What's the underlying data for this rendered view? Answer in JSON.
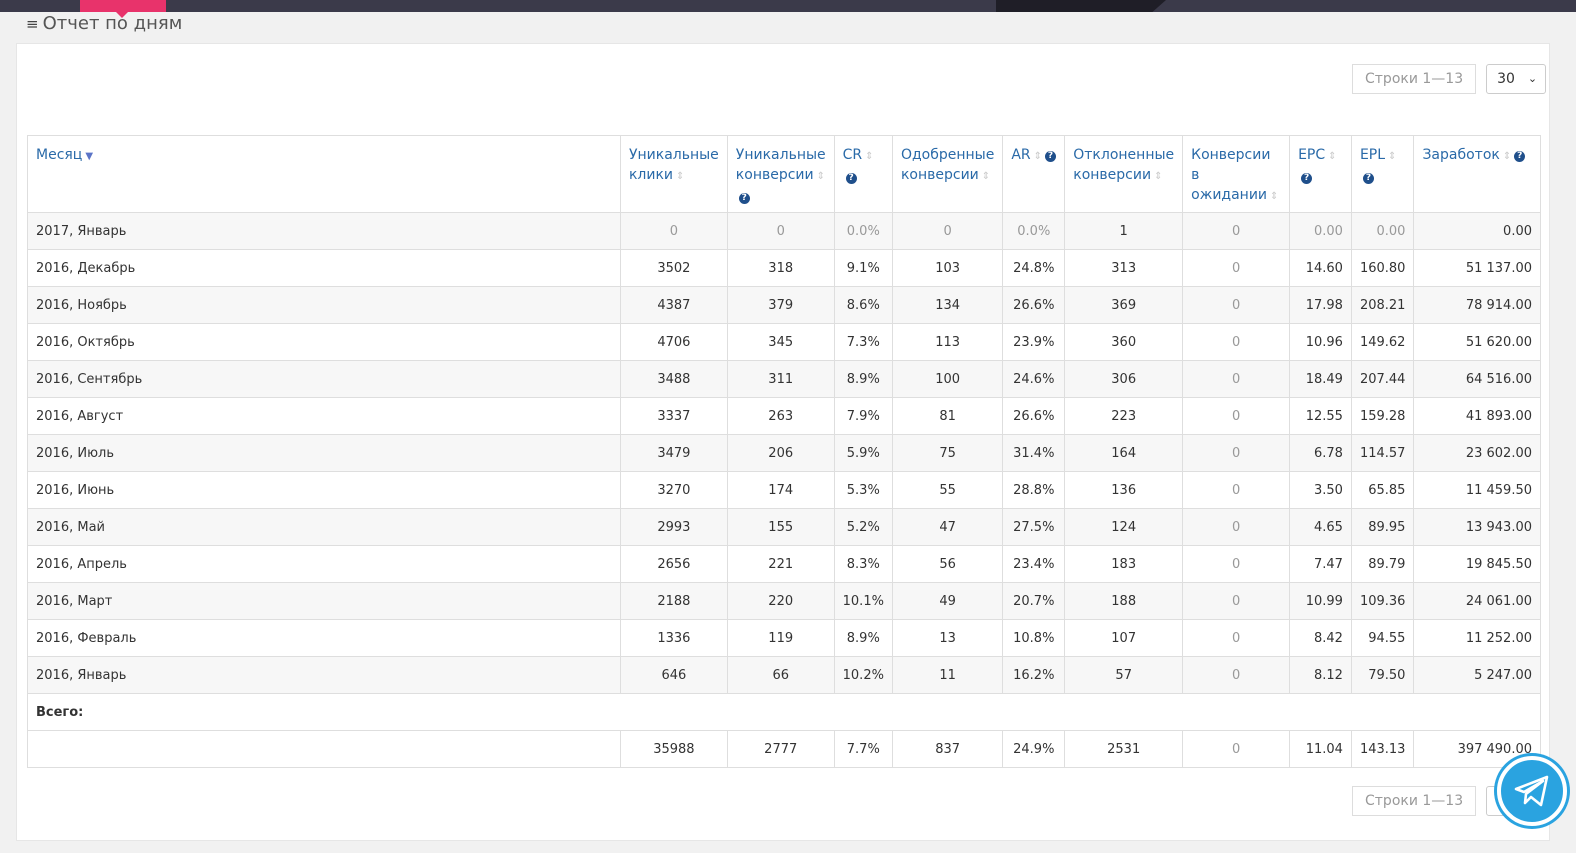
{
  "panel": {
    "title": "Отчет по дням",
    "rows_label": "Строки 1—13",
    "page_size": "30"
  },
  "columns": [
    {
      "key": "month",
      "label": "Месяц",
      "sorted": true,
      "help": false
    },
    {
      "key": "uniq_clicks",
      "label": "Уникальные клики",
      "help": false
    },
    {
      "key": "uniq_conv",
      "label": "Уникальные конверсии",
      "help": true
    },
    {
      "key": "cr",
      "label": "CR",
      "help": true
    },
    {
      "key": "approved",
      "label": "Одобренные конверсии",
      "help": false
    },
    {
      "key": "ar",
      "label": "AR",
      "help": true
    },
    {
      "key": "rejected",
      "label": "Отклоненные конверсии",
      "help": false
    },
    {
      "key": "pending",
      "label": "Конверсии в ожидании",
      "help": false
    },
    {
      "key": "epc",
      "label": "EPC",
      "help": true
    },
    {
      "key": "epl",
      "label": "EPL",
      "help": true
    },
    {
      "key": "earnings",
      "label": "Заработок",
      "help": true
    }
  ],
  "rows": [
    [
      "2017, Январь",
      "0",
      "0",
      "0.0%",
      "0",
      "0.0%",
      "1",
      "0",
      "0.00",
      "0.00",
      "0.00"
    ],
    [
      "2016, Декабрь",
      "3502",
      "318",
      "9.1%",
      "103",
      "24.8%",
      "313",
      "0",
      "14.60",
      "160.80",
      "51 137.00"
    ],
    [
      "2016, Ноябрь",
      "4387",
      "379",
      "8.6%",
      "134",
      "26.6%",
      "369",
      "0",
      "17.98",
      "208.21",
      "78 914.00"
    ],
    [
      "2016, Октябрь",
      "4706",
      "345",
      "7.3%",
      "113",
      "23.9%",
      "360",
      "0",
      "10.96",
      "149.62",
      "51 620.00"
    ],
    [
      "2016, Сентябрь",
      "3488",
      "311",
      "8.9%",
      "100",
      "24.6%",
      "306",
      "0",
      "18.49",
      "207.44",
      "64 516.00"
    ],
    [
      "2016, Август",
      "3337",
      "263",
      "7.9%",
      "81",
      "26.6%",
      "223",
      "0",
      "12.55",
      "159.28",
      "41 893.00"
    ],
    [
      "2016, Июль",
      "3479",
      "206",
      "5.9%",
      "75",
      "31.4%",
      "164",
      "0",
      "6.78",
      "114.57",
      "23 602.00"
    ],
    [
      "2016, Июнь",
      "3270",
      "174",
      "5.3%",
      "55",
      "28.8%",
      "136",
      "0",
      "3.50",
      "65.85",
      "11 459.50"
    ],
    [
      "2016, Май",
      "2993",
      "155",
      "5.2%",
      "47",
      "27.5%",
      "124",
      "0",
      "4.65",
      "89.95",
      "13 943.00"
    ],
    [
      "2016, Апрель",
      "2656",
      "221",
      "8.3%",
      "56",
      "23.4%",
      "183",
      "0",
      "7.47",
      "89.79",
      "19 845.50"
    ],
    [
      "2016, Март",
      "2188",
      "220",
      "10.1%",
      "49",
      "20.7%",
      "188",
      "0",
      "10.99",
      "109.36",
      "24 061.00"
    ],
    [
      "2016, Февраль",
      "1336",
      "119",
      "8.9%",
      "13",
      "10.8%",
      "107",
      "0",
      "8.42",
      "94.55",
      "11 252.00"
    ],
    [
      "2016, Январь",
      "646",
      "66",
      "10.2%",
      "11",
      "16.2%",
      "57",
      "0",
      "8.12",
      "79.50",
      "5 247.00"
    ]
  ],
  "total_label": "Всего:",
  "totals": [
    "",
    "35988",
    "2777",
    "7.7%",
    "837",
    "24.9%",
    "2531",
    "0",
    "11.04",
    "143.13",
    "397 490.00"
  ],
  "colors": {
    "link": "#2a6aa8",
    "accent": "#e8336b",
    "telegram": "#2aa3e0"
  },
  "icons": {
    "menu": "hamburger-icon",
    "help": "question-circle-icon",
    "sort": "sort-arrows-icon",
    "telegram": "telegram-icon"
  }
}
